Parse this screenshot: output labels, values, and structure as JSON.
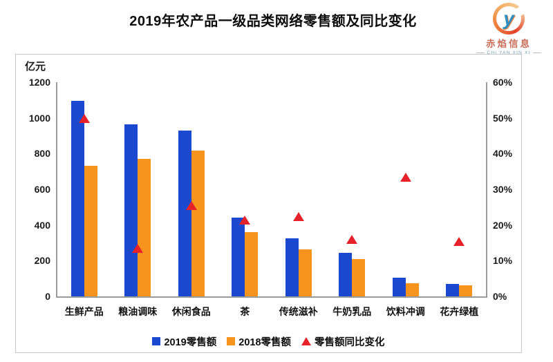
{
  "page": {
    "title": "2019年农产品一级品类网络零售额及同比变化"
  },
  "logo": {
    "glyph": "y",
    "company_cn": "赤焰信息",
    "company_en": "CHI YAN XIN XI"
  },
  "chart_data": {
    "type": "bar",
    "title": "2019年农产品一级品类网络零售额及同比变化",
    "unit_label": "亿元",
    "categories": [
      "生鲜产品",
      "粮油调味",
      "休闲食品",
      "茶",
      "传统滋补",
      "牛奶乳品",
      "饮料冲调",
      "花卉绿植"
    ],
    "series": [
      {
        "name": "2019零售额",
        "color": "#1a49cf",
        "axis": "left",
        "values": [
          1095,
          965,
          930,
          440,
          325,
          245,
          105,
          70
        ]
      },
      {
        "name": "2018零售额",
        "color": "#f7941e",
        "axis": "left",
        "values": [
          730,
          770,
          815,
          360,
          265,
          210,
          75,
          60
        ]
      }
    ],
    "marker_series": {
      "name": "零售额同比变化",
      "marker": "triangle",
      "color": "#e62129",
      "axis": "right",
      "values_pct": [
        50,
        13.5,
        25.5,
        21.5,
        22.5,
        16,
        33.5,
        15.5
      ]
    },
    "left_axis": {
      "min": 0,
      "max": 1200,
      "ticks": [
        "1200",
        "1000",
        "800",
        "600",
        "400",
        "200",
        "0"
      ]
    },
    "right_axis": {
      "min": 0,
      "max": 60,
      "ticks": [
        "60%",
        "50%",
        "40%",
        "30%",
        "20%",
        "10%",
        "0%"
      ]
    },
    "legend": [
      {
        "label": "2019零售额",
        "marker": "square",
        "color": "#1a49cf"
      },
      {
        "label": "2018零售额",
        "marker": "square",
        "color": "#f7941e"
      },
      {
        "label": "零售额同比变化",
        "marker": "triangle",
        "color": "#e62129"
      }
    ],
    "legend_position": "bottom",
    "grid": false
  }
}
